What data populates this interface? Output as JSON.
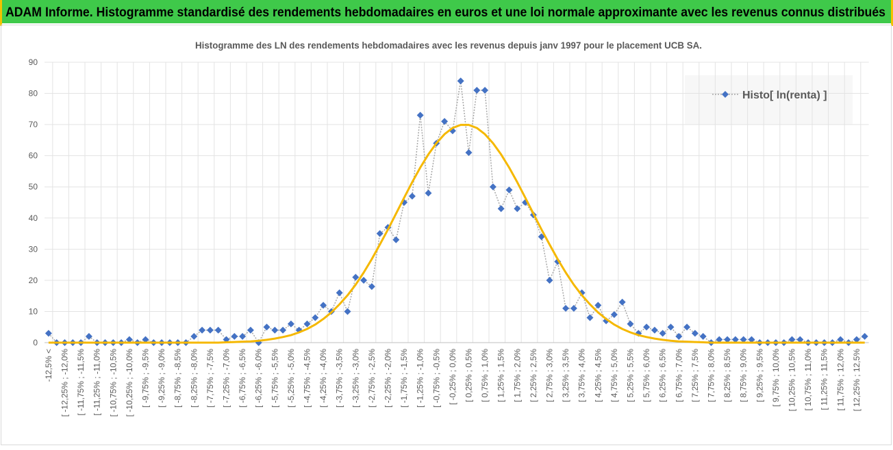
{
  "header": {
    "title": "ADAM Informe. Histogramme standardisé des rendements hebdomadaires en euros et une loi normale approximante avec les revenus connus distribués"
  },
  "chart_data": {
    "type": "line",
    "title": "Histogramme  des LN des rendements hebdomadaires avec les revenus depuis janv 1997 pour le placement UCB SA.",
    "categories": [
      "-12,5% <",
      null,
      "[ -12,25% ; -12,0%",
      null,
      "[ -11,75% ; -11,5%",
      null,
      "[ -11,25% ; -11,0%",
      null,
      "[ -10,75% ; -10,5%",
      null,
      "[ -10,25% ; -10,0%",
      null,
      "[ -9,75% ; -9,5%",
      null,
      "[ -9,25% ; -9,0%",
      null,
      "[ -8,75% ; -8,5%",
      null,
      "[ -8,25% ; -8,0%",
      null,
      "[ -7,75% ; -7,5%",
      null,
      "[ -7,25% ; -7,0%",
      null,
      "[ -6,75% ; -6,5%",
      null,
      "[ -6,25% ; -6,0%",
      null,
      "[ -5,75% ; -5,5%",
      null,
      "[ -5,25% ; -5,0%",
      null,
      "[ -4,75% ; -4,5%",
      null,
      "[ -4,25% ; -4,0%",
      null,
      "[ -3,75% ; -3,5%",
      null,
      "[ -3,25% ; -3,0%",
      null,
      "[ -2,75% ; -2,5%",
      null,
      "[ -2,25% ; -2,0%",
      null,
      "[ -1,75% ; -1,5%",
      null,
      "[ -1,25% ; -1,0%",
      null,
      "[ -0,75% ; -0,5%",
      null,
      "[ -0,25% ; 0,0%",
      null,
      "[ 0,25% ; 0,5%",
      null,
      "[ 0,75% ; 1,0%",
      null,
      "[ 1,25% ; 1,5%",
      null,
      "[ 1,75% ; 2,0%",
      null,
      "[ 2,25% ; 2,5%",
      null,
      "[ 2,75% ; 3,0%",
      null,
      "[ 3,25% ; 3,5%",
      null,
      "[ 3,75% ; 4,0%",
      null,
      "[ 4,25% ; 4,5%",
      null,
      "[ 4,75% ; 5,0%",
      null,
      "[ 5,25% ; 5,5%",
      null,
      "[ 5,75% ; 6,0%",
      null,
      "[ 6,25% ; 6,5%",
      null,
      "[ 6,75% ; 7,0%",
      null,
      "[ 7,25% ; 7,5%",
      null,
      "[ 7,75% ; 8,0%",
      null,
      "[ 8,25% ; 8,5%",
      null,
      "[ 8,75% ; 9,0%",
      null,
      "[ 9,25% ; 9,5%",
      null,
      "[ 9,75% ; 10,0%",
      null,
      "[ 10,25% ; 10,5%",
      null,
      "[ 10,75% ; 11,0%",
      null,
      "[ 11,25% ; 11,5%",
      null,
      "[ 11,75% ; 12,0%",
      null,
      "[ 12,25% ; 12,5%",
      null
    ],
    "series": [
      {
        "name": "Histo[ ln(renta) ]",
        "color": "#4472c4",
        "line_color": "#a6a6a6",
        "values": [
          3,
          0,
          0,
          0,
          0,
          2,
          0,
          0,
          0,
          0,
          1,
          0,
          1,
          0,
          0,
          0,
          0,
          0,
          2,
          4,
          4,
          4,
          1,
          2,
          2,
          4,
          0,
          5,
          4,
          4,
          6,
          4,
          6,
          8,
          12,
          10,
          16,
          10,
          21,
          20,
          18,
          35,
          37,
          33,
          45,
          47,
          73,
          48,
          64,
          71,
          68,
          84,
          61,
          81,
          81,
          50,
          43,
          49,
          43,
          45,
          41,
          34,
          20,
          26,
          11,
          11,
          16,
          8,
          12,
          7,
          9,
          13,
          6,
          3,
          5,
          4,
          3,
          5,
          2,
          5,
          3,
          2,
          0,
          1,
          1,
          1,
          1,
          1,
          0,
          0,
          0,
          0,
          1,
          1,
          0,
          0,
          0,
          0,
          1,
          0,
          1,
          2
        ]
      },
      {
        "color": "#f5b800",
        "values": [
          0,
          0,
          0,
          0,
          0,
          0,
          0,
          0,
          0,
          0,
          0,
          0,
          0,
          0,
          0,
          0,
          0,
          0,
          0,
          0,
          0,
          0,
          0.1,
          0.2,
          0.3,
          0.4,
          0.6,
          0.9,
          1.3,
          1.8,
          2.4,
          3.3,
          4.4,
          5.8,
          7.6,
          9.7,
          12.3,
          15.2,
          18.6,
          22.5,
          26.8,
          31.5,
          36.3,
          41.4,
          46.5,
          51.5,
          56.2,
          60.4,
          64.0,
          66.9,
          68.9,
          69.9,
          69.9,
          68.9,
          66.9,
          64.0,
          60.4,
          56.2,
          51.5,
          46.5,
          41.4,
          36.3,
          31.5,
          26.8,
          22.5,
          18.6,
          15.2,
          12.3,
          9.7,
          7.6,
          5.8,
          4.4,
          3.3,
          2.4,
          1.8,
          1.3,
          0.9,
          0.6,
          0.4,
          0.3,
          0.2,
          0.1,
          0,
          0,
          0,
          0,
          0,
          0,
          0,
          0,
          0,
          0,
          0,
          0,
          0,
          0,
          0,
          0,
          0,
          0,
          0,
          0
        ]
      }
    ],
    "ylim": [
      0,
      90
    ],
    "yticks": [
      0,
      10,
      20,
      30,
      40,
      50,
      60,
      70,
      80,
      90
    ],
    "grid": true,
    "legend": "top-right"
  }
}
